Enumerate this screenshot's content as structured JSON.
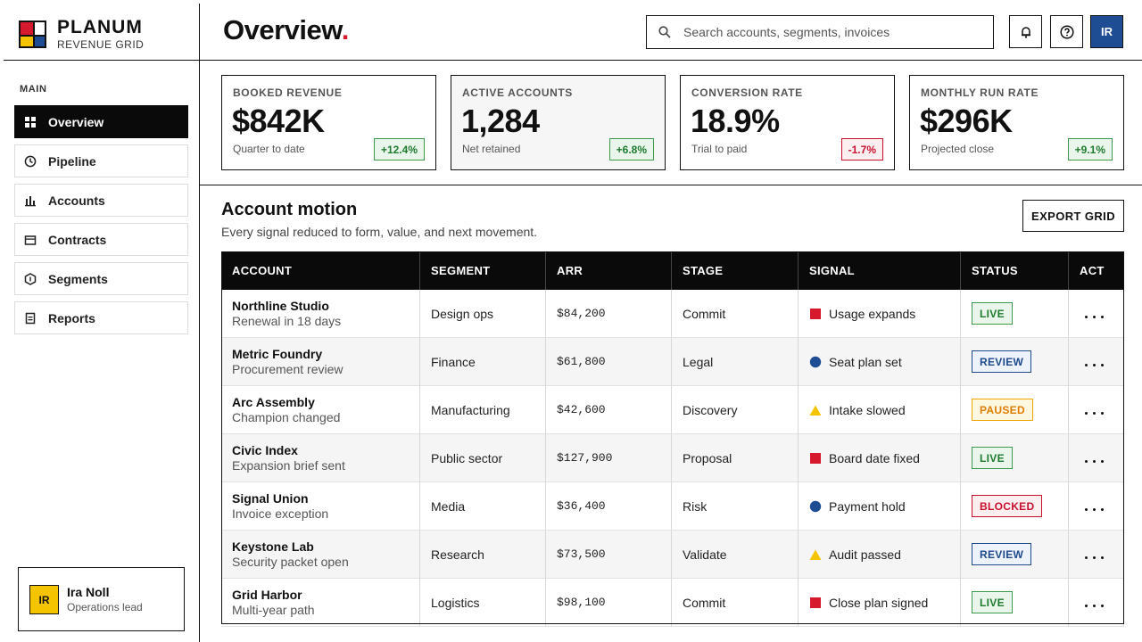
{
  "brand": {
    "name": "PLANUM",
    "tagline": "REVENUE GRID"
  },
  "header": {
    "title": "Overview",
    "title_mark": ".",
    "search_placeholder": "Search accounts, segments, invoices",
    "avatar": "IR"
  },
  "nav": {
    "section": "MAIN",
    "active_index": 0,
    "items": [
      "Overview",
      "Pipeline",
      "Accounts",
      "Contracts",
      "Segments",
      "Reports"
    ]
  },
  "user": {
    "initials": "IR",
    "name": "Ira Noll",
    "role": "Operations lead"
  },
  "kpis": [
    {
      "label": "BOOKED REVENUE",
      "value": "$842K",
      "note": "Quarter to date",
      "delta": "+12.4%",
      "trend": "up"
    },
    {
      "label": "ACTIVE ACCOUNTS",
      "value": "1,284",
      "note": "Net retained",
      "delta": "+6.8%",
      "trend": "up",
      "highlighted": true
    },
    {
      "label": "CONVERSION RATE",
      "value": "18.9%",
      "note": "Trial to paid",
      "delta": "-1.7%",
      "trend": "down"
    },
    {
      "label": "MONTHLY RUN RATE",
      "value": "$296K",
      "note": "Projected close",
      "delta": "+9.1%",
      "trend": "up"
    }
  ],
  "section": {
    "title": "Account motion",
    "subtitle": "Every signal reduced to form, value, and next movement.",
    "action": "EXPORT GRID"
  },
  "table": {
    "columns": [
      "ACCOUNT",
      "SEGMENT",
      "ARR",
      "STAGE",
      "SIGNAL",
      "STATUS",
      "ACT"
    ],
    "rows": [
      {
        "account": "Northline Studio",
        "detail": "Renewal in 18 days",
        "segment": "Design ops",
        "arr": "$84,200",
        "stage": "Commit",
        "signal": "Usage expands",
        "signal_shape": "square",
        "status": "LIVE",
        "status_tone": "live"
      },
      {
        "account": "Metric Foundry",
        "detail": "Procurement review",
        "segment": "Finance",
        "arr": "$61,800",
        "stage": "Legal",
        "signal": "Seat plan set",
        "signal_shape": "circle",
        "status": "REVIEW",
        "status_tone": "review"
      },
      {
        "account": "Arc Assembly",
        "detail": "Champion changed",
        "segment": "Manufacturing",
        "arr": "$42,600",
        "stage": "Discovery",
        "signal": "Intake slowed",
        "signal_shape": "triangle",
        "status": "PAUSED",
        "status_tone": "paused"
      },
      {
        "account": "Civic Index",
        "detail": "Expansion brief sent",
        "segment": "Public sector",
        "arr": "$127,900",
        "stage": "Proposal",
        "signal": "Board date fixed",
        "signal_shape": "square",
        "status": "LIVE",
        "status_tone": "live"
      },
      {
        "account": "Signal Union",
        "detail": "Invoice exception",
        "segment": "Media",
        "arr": "$36,400",
        "stage": "Risk",
        "signal": "Payment hold",
        "signal_shape": "circle",
        "status": "BLOCKED",
        "status_tone": "blocked"
      },
      {
        "account": "Keystone Lab",
        "detail": "Security packet open",
        "segment": "Research",
        "arr": "$73,500",
        "stage": "Validate",
        "signal": "Audit passed",
        "signal_shape": "triangle",
        "status": "REVIEW",
        "status_tone": "review"
      },
      {
        "account": "Grid Harbor",
        "detail": "Multi-year path",
        "segment": "Logistics",
        "arr": "$98,100",
        "stage": "Commit",
        "signal": "Close plan signed",
        "signal_shape": "square",
        "status": "LIVE",
        "status_tone": "live"
      }
    ]
  }
}
